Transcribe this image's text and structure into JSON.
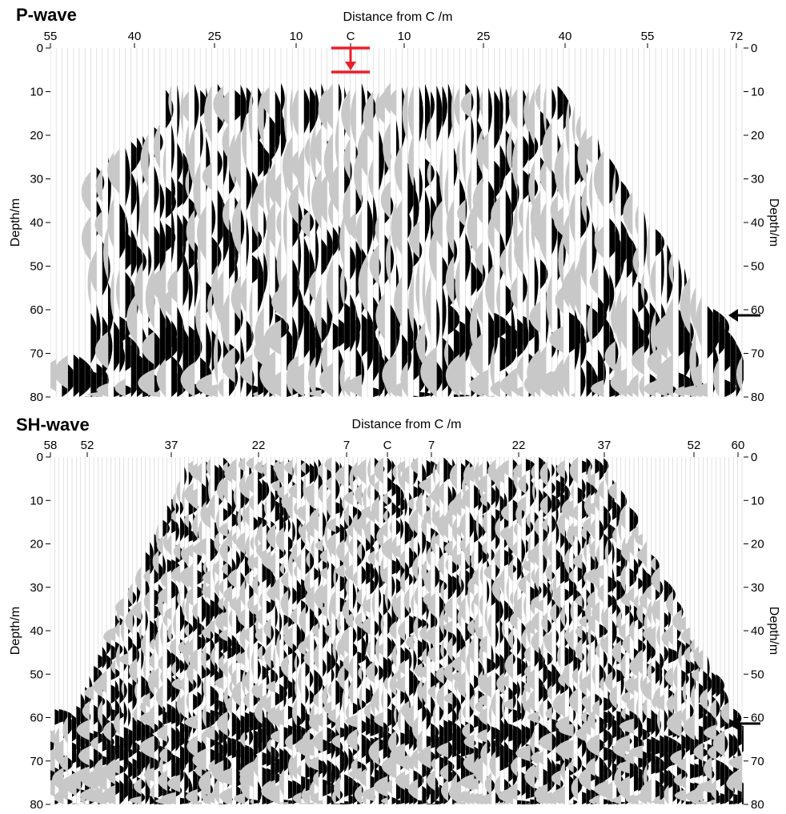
{
  "chart_data": [
    {
      "type": "heatmap",
      "title": "P-wave",
      "xlabel": "Distance from C /m",
      "ylabel_left": "Depth/m",
      "ylabel_right": "Depth/m",
      "x_tick_labels": [
        "55",
        "40",
        "25",
        "10",
        "C",
        "10",
        "25",
        "40",
        "55",
        "72"
      ],
      "y_ticks": [
        0,
        10,
        20,
        30,
        40,
        50,
        60,
        70,
        80
      ],
      "ylim": [
        0,
        80
      ],
      "grid": false,
      "source_marker": {
        "color": "#e8202a",
        "depth_range": [
          0,
          5.5
        ]
      },
      "horizon_arrow": {
        "depth": 62,
        "color": "#000000"
      },
      "colors": {
        "positive": "#000000",
        "negative": "#c8c8c8",
        "trace": "#cfcfcf"
      }
    },
    {
      "type": "heatmap",
      "title": "SH-wave",
      "xlabel": "Distance from C /m",
      "ylabel_left": "Depth/m",
      "ylabel_right": "Depth/m",
      "x_tick_labels": [
        "58",
        "52",
        "37",
        "22",
        "7",
        "C",
        "7",
        "22",
        "37",
        "52",
        "60"
      ],
      "y_ticks": [
        0,
        10,
        20,
        30,
        40,
        50,
        60,
        70,
        80
      ],
      "ylim": [
        0,
        80
      ],
      "grid": false,
      "horizon_arrow": {
        "depth": 61,
        "color": "#000000"
      },
      "colors": {
        "positive": "#000000",
        "negative": "#c8c8c8",
        "trace": "#cfcfcf"
      }
    }
  ]
}
